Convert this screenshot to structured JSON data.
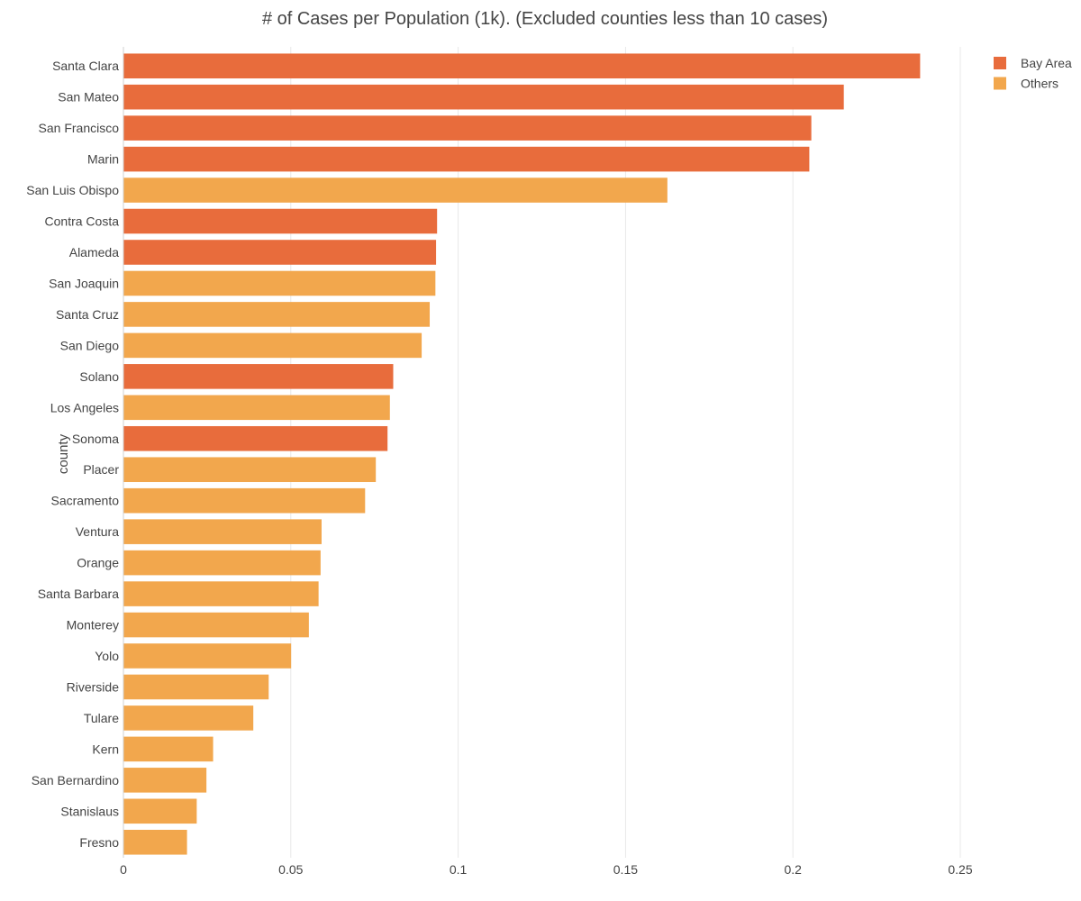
{
  "chart_data": {
    "type": "bar",
    "orientation": "horizontal",
    "title": "# of Cases per Population (1k). (Excluded counties less than 10 cases)",
    "xlabel": "",
    "ylabel": "county",
    "xlim": [
      0,
      0.25
    ],
    "xticks": [
      0,
      0.05,
      0.1,
      0.15,
      0.2,
      0.25
    ],
    "xtick_labels": [
      "0",
      "0.05",
      "0.1",
      "0.15",
      "0.2",
      "0.25"
    ],
    "grid": "vertical",
    "legend_position": "top-right",
    "series": [
      {
        "name": "Bay Area",
        "color": "#e86c3c"
      },
      {
        "name": "Others",
        "color": "#f2a74d"
      }
    ],
    "categories": [
      "Santa Clara",
      "San Mateo",
      "San Francisco",
      "Marin",
      "San Luis Obispo",
      "Contra Costa",
      "Alameda",
      "San Joaquin",
      "Santa Cruz",
      "San Diego",
      "Solano",
      "Los Angeles",
      "Sonoma",
      "Placer",
      "Sacramento",
      "Ventura",
      "Orange",
      "Santa Barbara",
      "Monterey",
      "Yolo",
      "Riverside",
      "Tulare",
      "Kern",
      "San Bernardino",
      "Stanislaus",
      "Fresno"
    ],
    "values": [
      0.238,
      0.2152,
      0.2055,
      0.2049,
      0.1625,
      0.0937,
      0.0934,
      0.0932,
      0.0915,
      0.0891,
      0.0806,
      0.0796,
      0.0789,
      0.0754,
      0.0722,
      0.0592,
      0.0589,
      0.0583,
      0.0554,
      0.0501,
      0.0434,
      0.0388,
      0.0268,
      0.0248,
      0.0219,
      0.019
    ],
    "groups": [
      "Bay Area",
      "Bay Area",
      "Bay Area",
      "Bay Area",
      "Others",
      "Bay Area",
      "Bay Area",
      "Others",
      "Others",
      "Others",
      "Bay Area",
      "Others",
      "Bay Area",
      "Others",
      "Others",
      "Others",
      "Others",
      "Others",
      "Others",
      "Others",
      "Others",
      "Others",
      "Others",
      "Others",
      "Others",
      "Others"
    ]
  }
}
